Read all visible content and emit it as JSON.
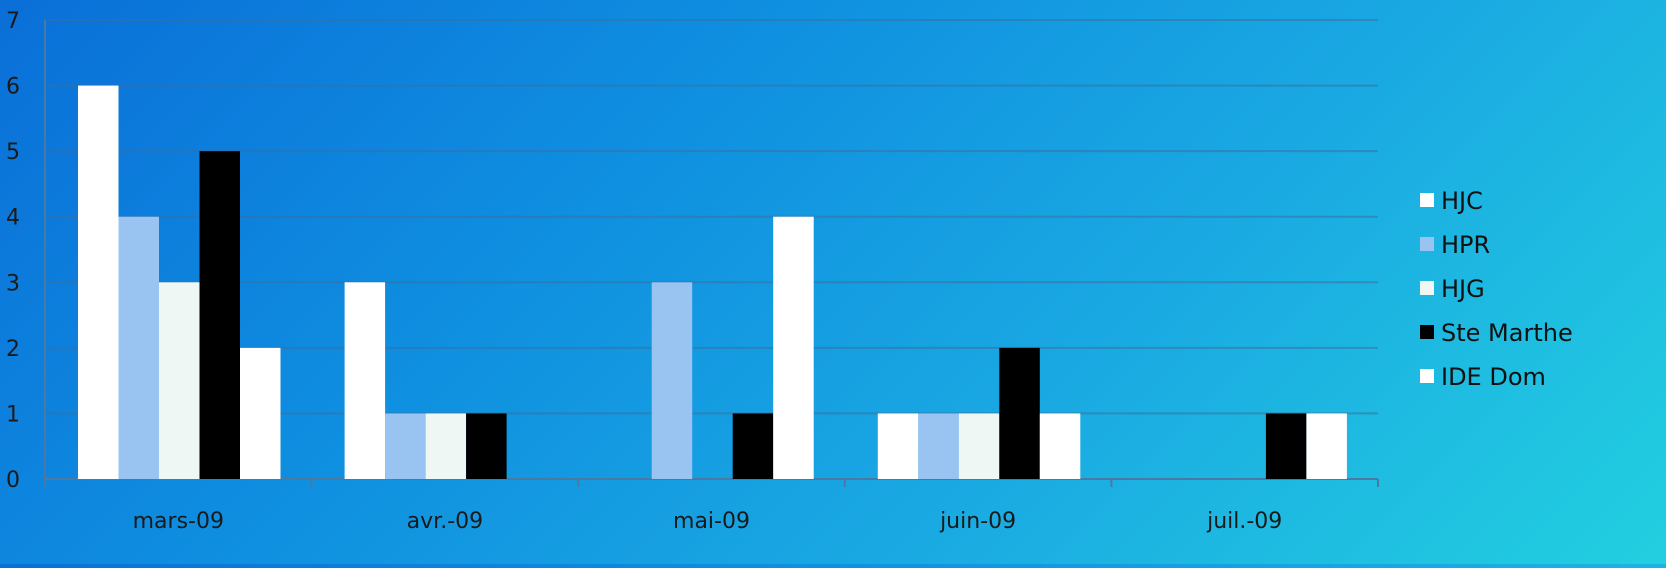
{
  "chart_data": {
    "type": "bar",
    "categories": [
      "mars-09",
      "avr.-09",
      "mai-09",
      "juin-09",
      "juil.-09"
    ],
    "series": [
      {
        "name": "HJC",
        "color": "#ffffff",
        "values": [
          6,
          3,
          0,
          1,
          0
        ]
      },
      {
        "name": "HPR",
        "color": "#99c4f2",
        "values": [
          4,
          1,
          3,
          1,
          0
        ]
      },
      {
        "name": "HJG",
        "color": "#eef7f4",
        "values": [
          3,
          1,
          0,
          1,
          0
        ]
      },
      {
        "name": "Ste Marthe",
        "color": "#000000",
        "values": [
          5,
          1,
          1,
          2,
          1
        ]
      },
      {
        "name": "IDE Dom",
        "color": "#ffffff",
        "values": [
          2,
          0,
          4,
          1,
          1
        ]
      }
    ],
    "title": "",
    "xlabel": "",
    "ylabel": "",
    "ylim": [
      0,
      7
    ],
    "yticks": [
      0,
      1,
      2,
      3,
      4,
      5,
      6,
      7
    ],
    "grid": true,
    "legend_position": "right"
  }
}
